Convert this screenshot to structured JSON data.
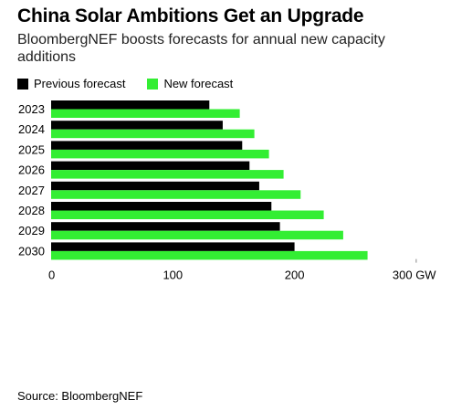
{
  "title": "China Solar Ambitions Get an Upgrade",
  "subtitle": "BloombergNEF boosts forecasts for annual new capacity additions",
  "source": "Source: BloombergNEF",
  "colors": {
    "previous": "#000000",
    "new": "#33ee33"
  },
  "chart_data": {
    "type": "bar",
    "orientation": "horizontal",
    "categories": [
      "2023",
      "2024",
      "2025",
      "2026",
      "2027",
      "2028",
      "2029",
      "2030"
    ],
    "series": [
      {
        "name": "Previous forecast",
        "values": [
          130,
          141,
          157,
          163,
          171,
          181,
          188,
          200
        ]
      },
      {
        "name": "New forecast",
        "values": [
          155,
          167,
          179,
          191,
          205,
          224,
          240,
          260
        ]
      }
    ],
    "x_ticks": [
      "0",
      "100",
      "200",
      "300 GW"
    ],
    "xlim": [
      0,
      300
    ],
    "grid": false,
    "legend": "top-left"
  }
}
